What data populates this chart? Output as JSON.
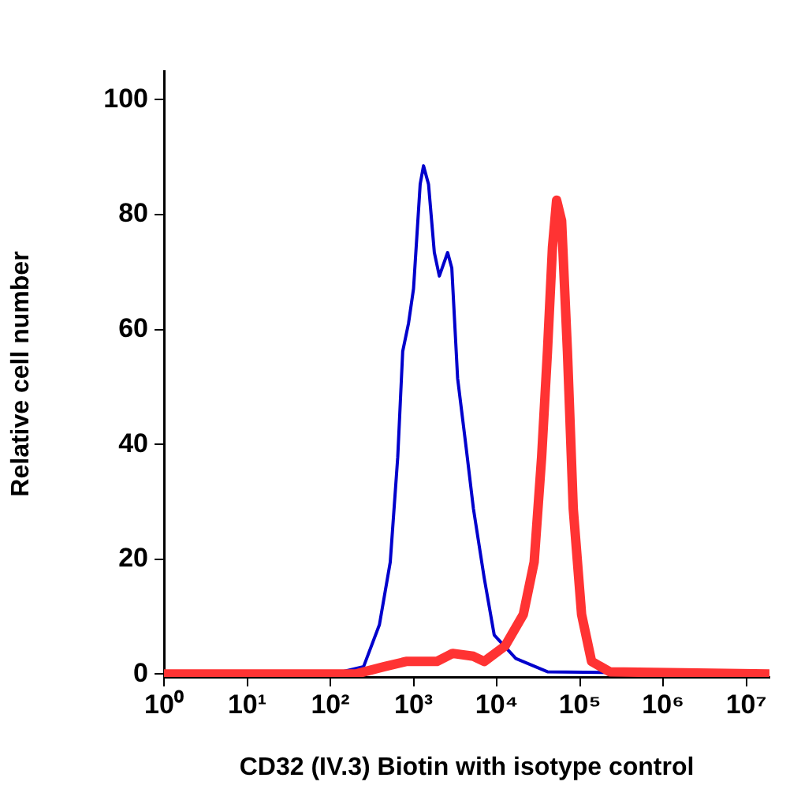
{
  "chart_data": {
    "type": "line",
    "xlabel": "CD32 (IV.3) Biotin with isotype control",
    "ylabel": "Relative cell number",
    "log": "x",
    "grid": false,
    "legend": false,
    "marker": "none",
    "line_style": "solid",
    "xlim": [
      1,
      19000000
    ],
    "xticks": [
      {
        "value": 1,
        "label": "10⁰"
      },
      {
        "value": 10,
        "label": "10¹"
      },
      {
        "value": 100,
        "label": "10²"
      },
      {
        "value": 1000,
        "label": "10³"
      },
      {
        "value": 10000,
        "label": "10⁴"
      },
      {
        "value": 100000,
        "label": "10⁵"
      },
      {
        "value": 1000000,
        "label": "10⁶"
      },
      {
        "value": 10000000,
        "label": "10⁷"
      }
    ],
    "ylim": [
      -0.5,
      105
    ],
    "yticks": [
      0,
      20,
      40,
      60,
      80,
      100
    ],
    "series": [
      {
        "color": "#ff3333",
        "x": [
          1,
          200,
          447,
          813,
          1905,
          2951,
          5248,
          7079,
          12589,
          20893,
          28184,
          34674,
          40738,
          46774,
          52481,
          60256,
          70795,
          83176,
          104713,
          138038,
          229087,
          19000000
        ],
        "values": [
          0,
          0,
          1.3,
          2.2,
          2.2,
          3.6,
          3.1,
          2.2,
          4.9,
          10.4,
          19.5,
          37.8,
          56.2,
          74.3,
          82.5,
          78.9,
          56.2,
          28.8,
          10.4,
          2.2,
          0.4,
          0
        ]
      },
      {
        "color": "#0000cc",
        "x": [
          1,
          105,
          251,
          389,
          525,
          646,
          741,
          871,
          1000,
          1202,
          1318,
          1514,
          1778,
          2042,
          2570,
          2884,
          3388,
          4266,
          5248,
          7079,
          9333,
          16982,
          40738,
          19000000
        ],
        "values": [
          0,
          0,
          1.3,
          8.6,
          19.5,
          37.8,
          56.2,
          61.1,
          67.1,
          85.3,
          88.5,
          85.3,
          73.4,
          69.3,
          73.4,
          70.7,
          51.5,
          39.7,
          28.8,
          16.7,
          6.8,
          2.7,
          0.4,
          0
        ]
      }
    ]
  }
}
